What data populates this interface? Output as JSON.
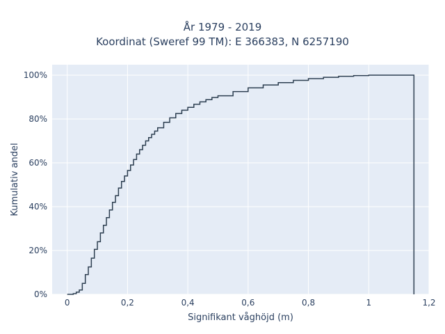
{
  "chart_data": {
    "type": "line",
    "title_lines": [
      "År 1979 - 2019",
      "Koordinat (Sweref 99 TM): E 366383, N 6257190"
    ],
    "xlabel": "Signifikant våghöjd (m)",
    "ylabel": "Kumulativ andel",
    "xlim": [
      -0.05,
      1.2
    ],
    "ylim": [
      0,
      1.0
    ],
    "x_ticks": [
      0,
      0.2,
      0.4,
      0.6,
      0.8,
      1.0,
      1.2
    ],
    "x_tick_labels": [
      "0",
      "0,2",
      "0,4",
      "0,6",
      "0,8",
      "1",
      "1,2"
    ],
    "y_ticks": [
      0,
      0.2,
      0.4,
      0.6,
      0.8,
      1.0
    ],
    "y_tick_labels": [
      "0%",
      "20%",
      "40%",
      "60%",
      "80%",
      "100%"
    ],
    "grid": true,
    "line_color": "#2c3e50",
    "plot_bgcolor": "#e5ecf6",
    "series": [
      {
        "step": "post",
        "x": [
          0.0,
          0.02,
          0.03,
          0.04,
          0.05,
          0.06,
          0.07,
          0.08,
          0.09,
          0.1,
          0.11,
          0.12,
          0.13,
          0.14,
          0.15,
          0.16,
          0.17,
          0.18,
          0.19,
          0.2,
          0.21,
          0.22,
          0.23,
          0.24,
          0.25,
          0.26,
          0.27,
          0.28,
          0.29,
          0.3,
          0.32,
          0.34,
          0.36,
          0.38,
          0.4,
          0.42,
          0.44,
          0.46,
          0.48,
          0.5,
          0.55,
          0.6,
          0.65,
          0.7,
          0.75,
          0.8,
          0.85,
          0.9,
          0.95,
          1.0,
          1.05,
          1.1,
          1.15
        ],
        "y": [
          0.0,
          0.003,
          0.01,
          0.02,
          0.05,
          0.09,
          0.125,
          0.165,
          0.205,
          0.24,
          0.28,
          0.315,
          0.35,
          0.385,
          0.42,
          0.45,
          0.485,
          0.515,
          0.54,
          0.565,
          0.59,
          0.615,
          0.64,
          0.66,
          0.68,
          0.7,
          0.715,
          0.73,
          0.745,
          0.76,
          0.785,
          0.805,
          0.825,
          0.84,
          0.853,
          0.867,
          0.878,
          0.888,
          0.898,
          0.906,
          0.925,
          0.942,
          0.955,
          0.966,
          0.976,
          0.984,
          0.99,
          0.995,
          0.998,
          1.0,
          1.0,
          1.0,
          1.0
        ]
      }
    ]
  }
}
